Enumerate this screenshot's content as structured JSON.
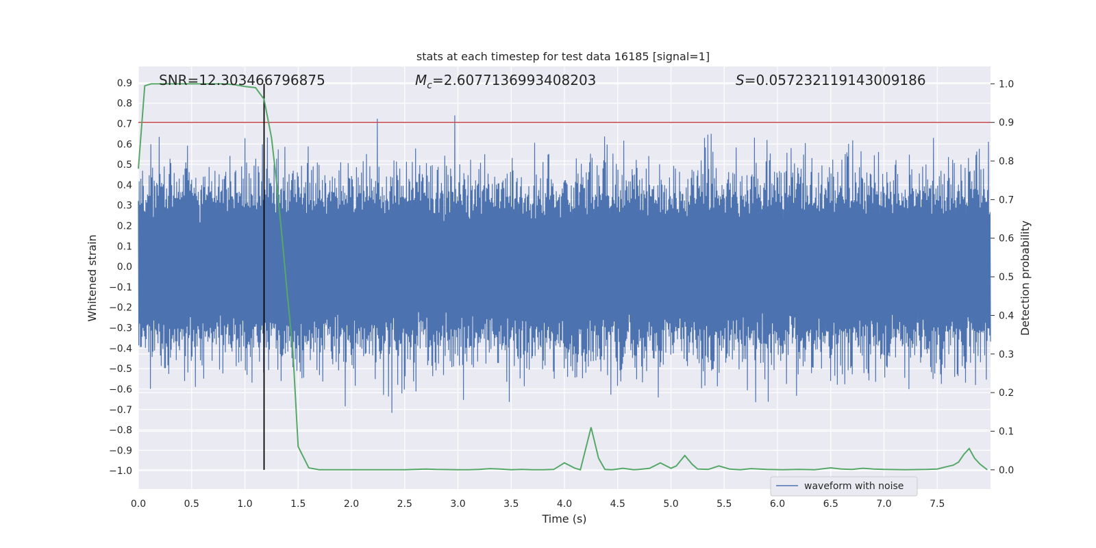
{
  "chart_data": {
    "type": "line",
    "title": "stats at each timestep for test data 16185 [signal=1]",
    "xlabel": "Time (s)",
    "ylabel": "Whitened strain",
    "y2label": "Detection probability",
    "xlim": [
      0.0,
      8.0
    ],
    "ylim": [
      -1.09,
      0.98
    ],
    "y2lim": [
      -0.05,
      1.045
    ],
    "grid": true,
    "x_ticks": [
      "0.0",
      "0.5",
      "1.0",
      "1.5",
      "2.0",
      "2.5",
      "3.0",
      "3.5",
      "4.0",
      "4.5",
      "5.0",
      "5.5",
      "6.0",
      "6.5",
      "7.0",
      "7.5"
    ],
    "x_tick_values": [
      0.0,
      0.5,
      1.0,
      1.5,
      2.0,
      2.5,
      3.0,
      3.5,
      4.0,
      4.5,
      5.0,
      5.5,
      6.0,
      6.5,
      7.0,
      7.5
    ],
    "y_ticks": [
      "0.9",
      "0.8",
      "0.7",
      "0.6",
      "0.5",
      "0.4",
      "0.3",
      "0.2",
      "0.1",
      "0.0",
      "−0.1",
      "−0.2",
      "−0.3",
      "−0.4",
      "−0.5",
      "−0.6",
      "−0.7",
      "−0.8",
      "−0.9",
      "−1.0"
    ],
    "y_tick_values": [
      0.9,
      0.8,
      0.7,
      0.6,
      0.5,
      0.4,
      0.3,
      0.2,
      0.1,
      0.0,
      -0.1,
      -0.2,
      -0.3,
      -0.4,
      -0.5,
      -0.6,
      -0.7,
      -0.8,
      -0.9,
      -1.0
    ],
    "y2_ticks": [
      "1.0",
      "0.9",
      "0.8",
      "0.7",
      "0.6",
      "0.5",
      "0.4",
      "0.3",
      "0.2",
      "0.1",
      "0.0"
    ],
    "y2_tick_values": [
      1.0,
      0.9,
      0.8,
      0.7,
      0.6,
      0.5,
      0.4,
      0.3,
      0.2,
      0.1,
      0.0
    ],
    "annotations": {
      "snr": "SNR=12.303466796875",
      "mc_symbol": "M",
      "mc_sub": "c",
      "mc_value": "=2.6077136993408203",
      "s_symbol": "S",
      "s_value": "=0.057232119143009186"
    },
    "legend": {
      "label": "waveform with noise",
      "location": "lower-right"
    },
    "threshold": {
      "axis": "right",
      "value": 0.9
    },
    "signal_marker_time": 1.18,
    "series": [
      {
        "name": "waveform with noise",
        "axis": "left",
        "color": "#4c72b0",
        "t_start": 0.0,
        "t_end": 8.0,
        "n_samples": 2048,
        "core_amplitude": 0.28,
        "noise_std": 0.13
      },
      {
        "name": "detection probability",
        "axis": "right",
        "color": "#55a868",
        "x": [
          0.0,
          0.06,
          0.12,
          0.5,
          0.8,
          0.9,
          1.0,
          1.1,
          1.18,
          1.25,
          1.3,
          1.35,
          1.4,
          1.45,
          1.5,
          1.6,
          1.7,
          1.8,
          2.0,
          2.3,
          2.5,
          2.6,
          2.7,
          2.8,
          3.0,
          3.1,
          3.2,
          3.3,
          3.4,
          3.5,
          3.6,
          3.7,
          3.8,
          3.9,
          4.0,
          4.1,
          4.15,
          4.25,
          4.32,
          4.38,
          4.45,
          4.55,
          4.65,
          4.7,
          4.8,
          4.9,
          5.0,
          5.05,
          5.13,
          5.2,
          5.25,
          5.35,
          5.45,
          5.55,
          5.65,
          5.75,
          5.9,
          6.05,
          6.2,
          6.35,
          6.5,
          6.6,
          6.7,
          6.8,
          6.9,
          7.0,
          7.2,
          7.4,
          7.5,
          7.6,
          7.65,
          7.7,
          7.75,
          7.8,
          7.85,
          7.9,
          7.97
        ],
        "values": [
          0.78,
          0.995,
          1.0,
          1.0,
          1.0,
          0.998,
          0.993,
          0.99,
          0.96,
          0.86,
          0.74,
          0.6,
          0.45,
          0.31,
          0.06,
          0.005,
          0.0,
          0.0,
          0.0,
          0.0,
          0.0,
          0.001,
          0.002,
          0.001,
          0.0,
          0.0,
          0.001,
          0.003,
          0.002,
          0.0,
          0.001,
          0.0,
          0.0,
          0.001,
          0.018,
          0.004,
          0.0,
          0.11,
          0.03,
          0.001,
          0.0,
          0.004,
          0.0,
          0.001,
          0.004,
          0.018,
          0.004,
          0.01,
          0.037,
          0.014,
          0.002,
          0.001,
          0.01,
          0.002,
          0.0,
          0.003,
          0.001,
          0.0,
          0.001,
          0.0,
          0.005,
          0.002,
          0.001,
          0.004,
          0.002,
          0.001,
          0.0,
          0.001,
          0.002,
          0.009,
          0.012,
          0.02,
          0.04,
          0.055,
          0.03,
          0.015,
          0.0
        ]
      }
    ]
  }
}
